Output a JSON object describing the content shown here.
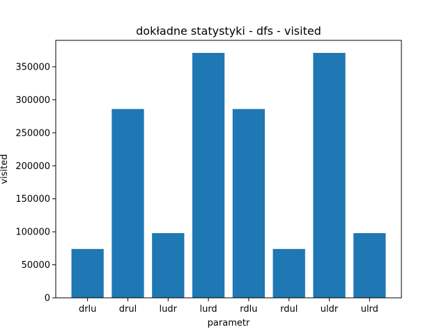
{
  "chart_data": {
    "type": "bar",
    "title": "dokładne statystyki - dfs - visited",
    "xlabel": "parametr",
    "ylabel": "visited",
    "categories": [
      "drlu",
      "drul",
      "ludr",
      "lurd",
      "rdlu",
      "rdul",
      "uldr",
      "ulrd"
    ],
    "values": [
      74000,
      286000,
      98000,
      371000,
      286000,
      74000,
      371000,
      98000
    ],
    "ylim": [
      0,
      390000
    ],
    "yticks": [
      0,
      50000,
      100000,
      150000,
      200000,
      250000,
      300000,
      350000
    ],
    "ytick_labels": [
      "0",
      "50000",
      "100000",
      "150000",
      "200000",
      "250000",
      "300000",
      "350000"
    ],
    "grid": false,
    "bar_color": "#1f77b4"
  }
}
